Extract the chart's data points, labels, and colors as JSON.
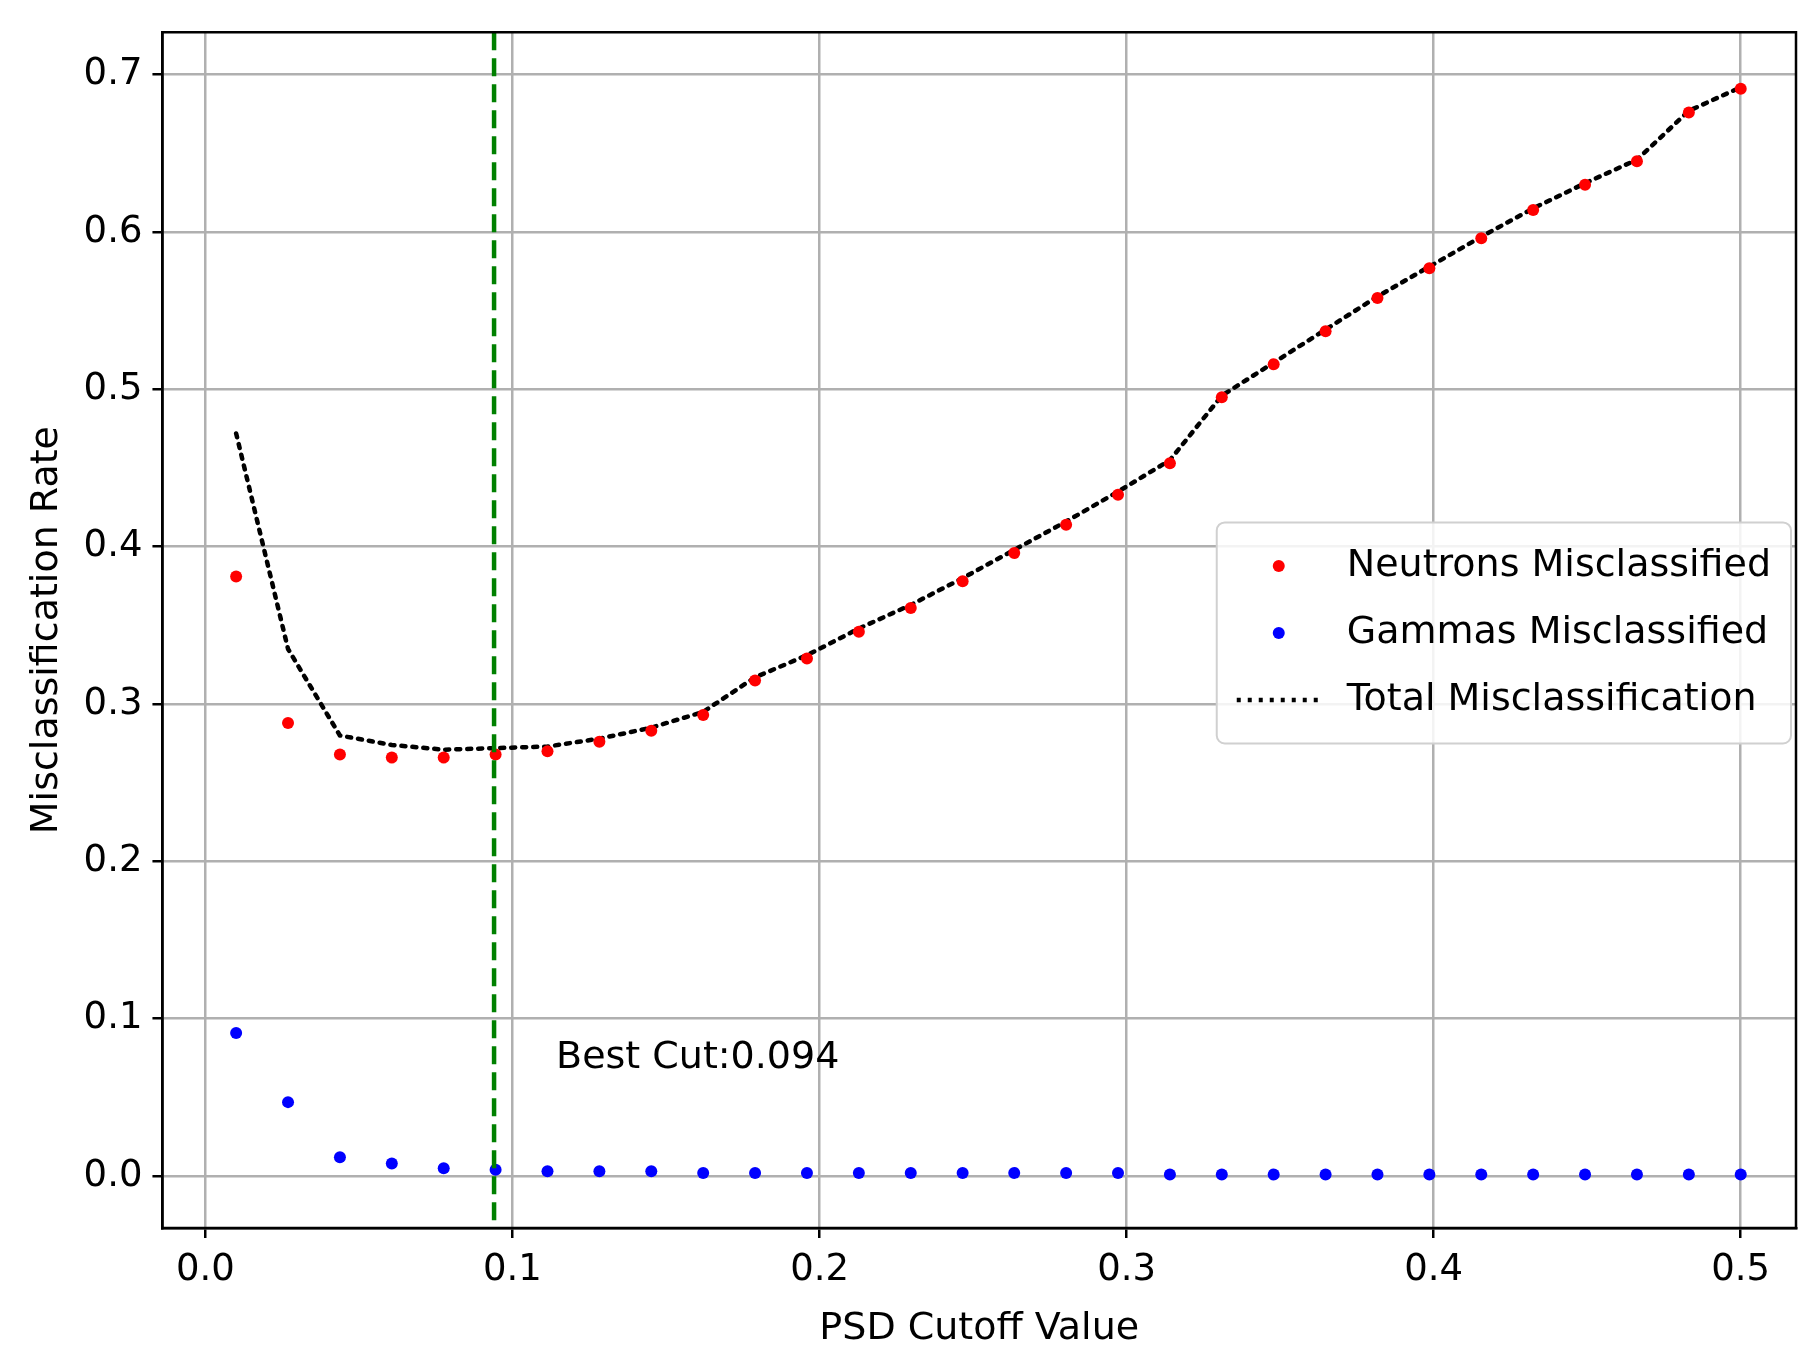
{
  "chart_data": {
    "type": "scatter",
    "xlabel": "PSD Cutoff Value",
    "ylabel": "Misclassification Rate",
    "x": [
      0.01,
      0.0269,
      0.0438,
      0.0607,
      0.0776,
      0.0945,
      0.1114,
      0.1283,
      0.1452,
      0.1621,
      0.179,
      0.1959,
      0.2128,
      0.2297,
      0.2466,
      0.2634,
      0.2803,
      0.2972,
      0.3141,
      0.331,
      0.3479,
      0.3648,
      0.3817,
      0.3986,
      0.4155,
      0.4324,
      0.4493,
      0.4662,
      0.4831,
      0.5
    ],
    "series": [
      {
        "name": "Neutrons Misclassified",
        "color": "#ff0000",
        "marker": "circle",
        "values": [
          0.381,
          0.288,
          0.268,
          0.266,
          0.266,
          0.268,
          0.27,
          0.276,
          0.283,
          0.293,
          0.315,
          0.329,
          0.346,
          0.361,
          0.378,
          0.396,
          0.414,
          0.433,
          0.453,
          0.495,
          0.516,
          0.537,
          0.558,
          0.577,
          0.596,
          0.614,
          0.63,
          0.645,
          0.676,
          0.691
        ]
      },
      {
        "name": "Gammas Misclassified",
        "color": "#0000ff",
        "marker": "circle",
        "values": [
          0.091,
          0.047,
          0.012,
          0.008,
          0.005,
          0.004,
          0.003,
          0.003,
          0.003,
          0.002,
          0.002,
          0.002,
          0.002,
          0.002,
          0.002,
          0.002,
          0.002,
          0.002,
          0.001,
          0.001,
          0.001,
          0.001,
          0.001,
          0.001,
          0.001,
          0.001,
          0.001,
          0.001,
          0.001,
          0.001
        ]
      },
      {
        "name": "Total Misclassification",
        "type": "line",
        "color": "#000000",
        "marker": "none",
        "line_style": "dotted",
        "values": [
          0.472,
          0.335,
          0.28,
          0.274,
          0.271,
          0.272,
          0.273,
          0.278,
          0.285,
          0.295,
          0.317,
          0.331,
          0.348,
          0.363,
          0.38,
          0.398,
          0.416,
          0.435,
          0.455,
          0.496,
          0.517,
          0.538,
          0.559,
          0.578,
          0.597,
          0.615,
          0.631,
          0.646,
          0.677,
          0.692
        ]
      }
    ],
    "xlim": [
      -0.014,
      0.518
    ],
    "xticks": [
      {
        "value": 0,
        "label": "0.0"
      },
      0.1,
      0.2,
      0.3,
      0.4,
      0.5
    ],
    "ylim": [
      -0.033,
      0.727
    ],
    "yticks": [
      {
        "value": 0,
        "label": "0.0"
      },
      0.1,
      0.2,
      0.3,
      0.4,
      0.5,
      0.6,
      0.7
    ],
    "ref_lines": [
      {
        "axis": "x",
        "value": 0.094,
        "label": "Best Cut:0.094",
        "color": "#008000",
        "line_style": "dashed"
      }
    ],
    "grid": true,
    "legend": "right"
  }
}
